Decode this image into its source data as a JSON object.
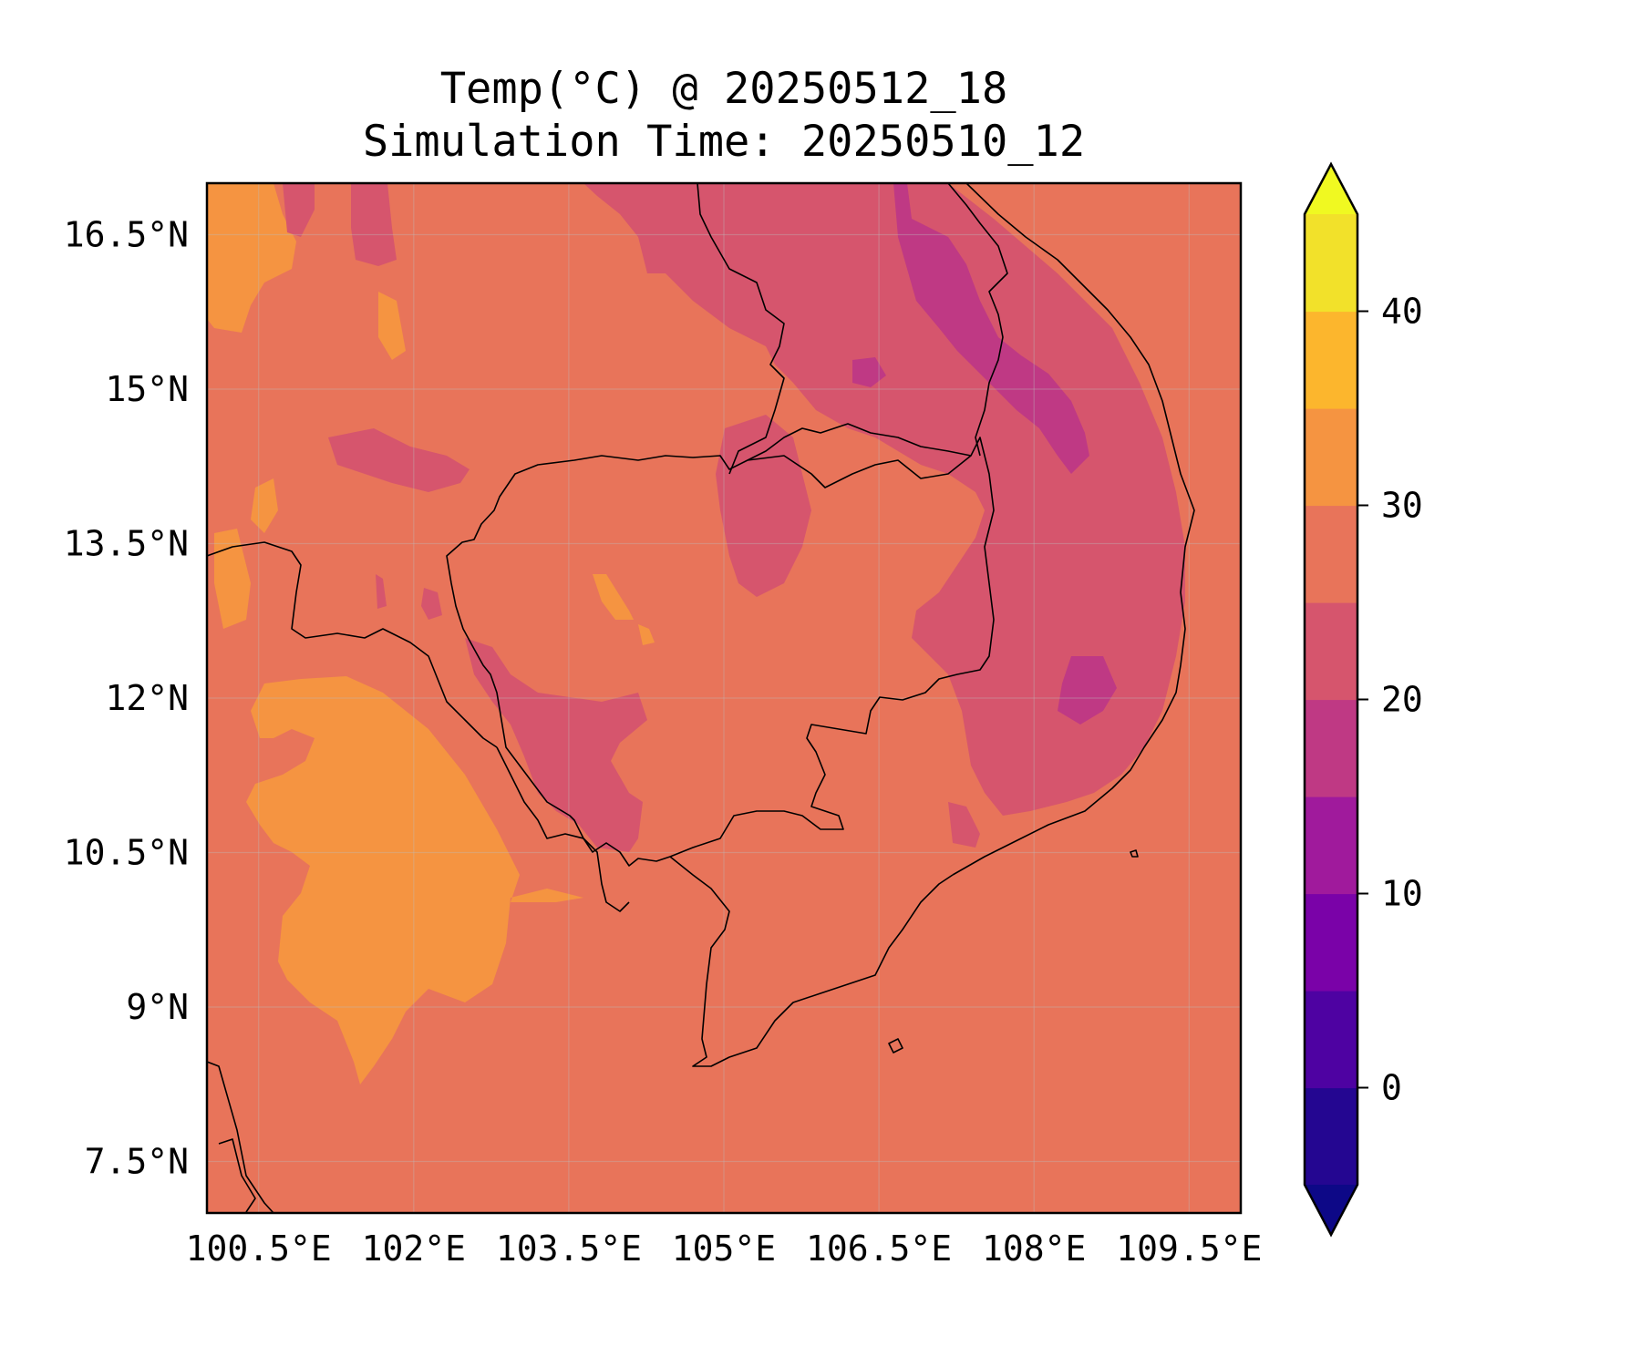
{
  "title": {
    "line1": "Temp(°C) @ 20250512_18",
    "line2": "Simulation Time: 20250510_12"
  },
  "map": {
    "lon_range": [
      100.0,
      110.0
    ],
    "lat_range": [
      7.0,
      17.0
    ],
    "x_ticks": [
      100.5,
      102.0,
      103.5,
      105.0,
      106.5,
      108.0,
      109.5
    ],
    "x_tick_labels": [
      "100.5°E",
      "102°E",
      "103.5°E",
      "105°E",
      "106.5°E",
      "108°E",
      "109.5°E"
    ],
    "y_ticks": [
      7.5,
      9.0,
      10.5,
      12.0,
      13.5,
      15.0,
      16.5
    ],
    "y_tick_labels": [
      "7.5°N",
      "9°N",
      "10.5°N",
      "12°N",
      "13.5°N",
      "15°N",
      "16.5°N"
    ],
    "gridlines": true,
    "dominant_color": "#e8745a",
    "regions": [
      {
        "name": "warm-30-35",
        "color": "#f59441"
      },
      {
        "name": "cool-20-25",
        "color": "#d6556d"
      },
      {
        "name": "cool-15-20",
        "color": "#bf3984"
      }
    ]
  },
  "colorbar": {
    "levels": [
      -5,
      0,
      5,
      10,
      15,
      20,
      25,
      30,
      35,
      40,
      45
    ],
    "colors": [
      "#240691",
      "#4e02a2",
      "#7a02a8",
      "#a01a9c",
      "#bf3984",
      "#d6556d",
      "#e8745a",
      "#f59441",
      "#fcb62d",
      "#f2e12a"
    ],
    "under_color": "#0d0887",
    "over_color": "#f0f921",
    "extend": "both",
    "tick_values": [
      0,
      10,
      20,
      30,
      40
    ],
    "tick_labels": [
      "0",
      "10",
      "20",
      "30",
      "40"
    ]
  }
}
